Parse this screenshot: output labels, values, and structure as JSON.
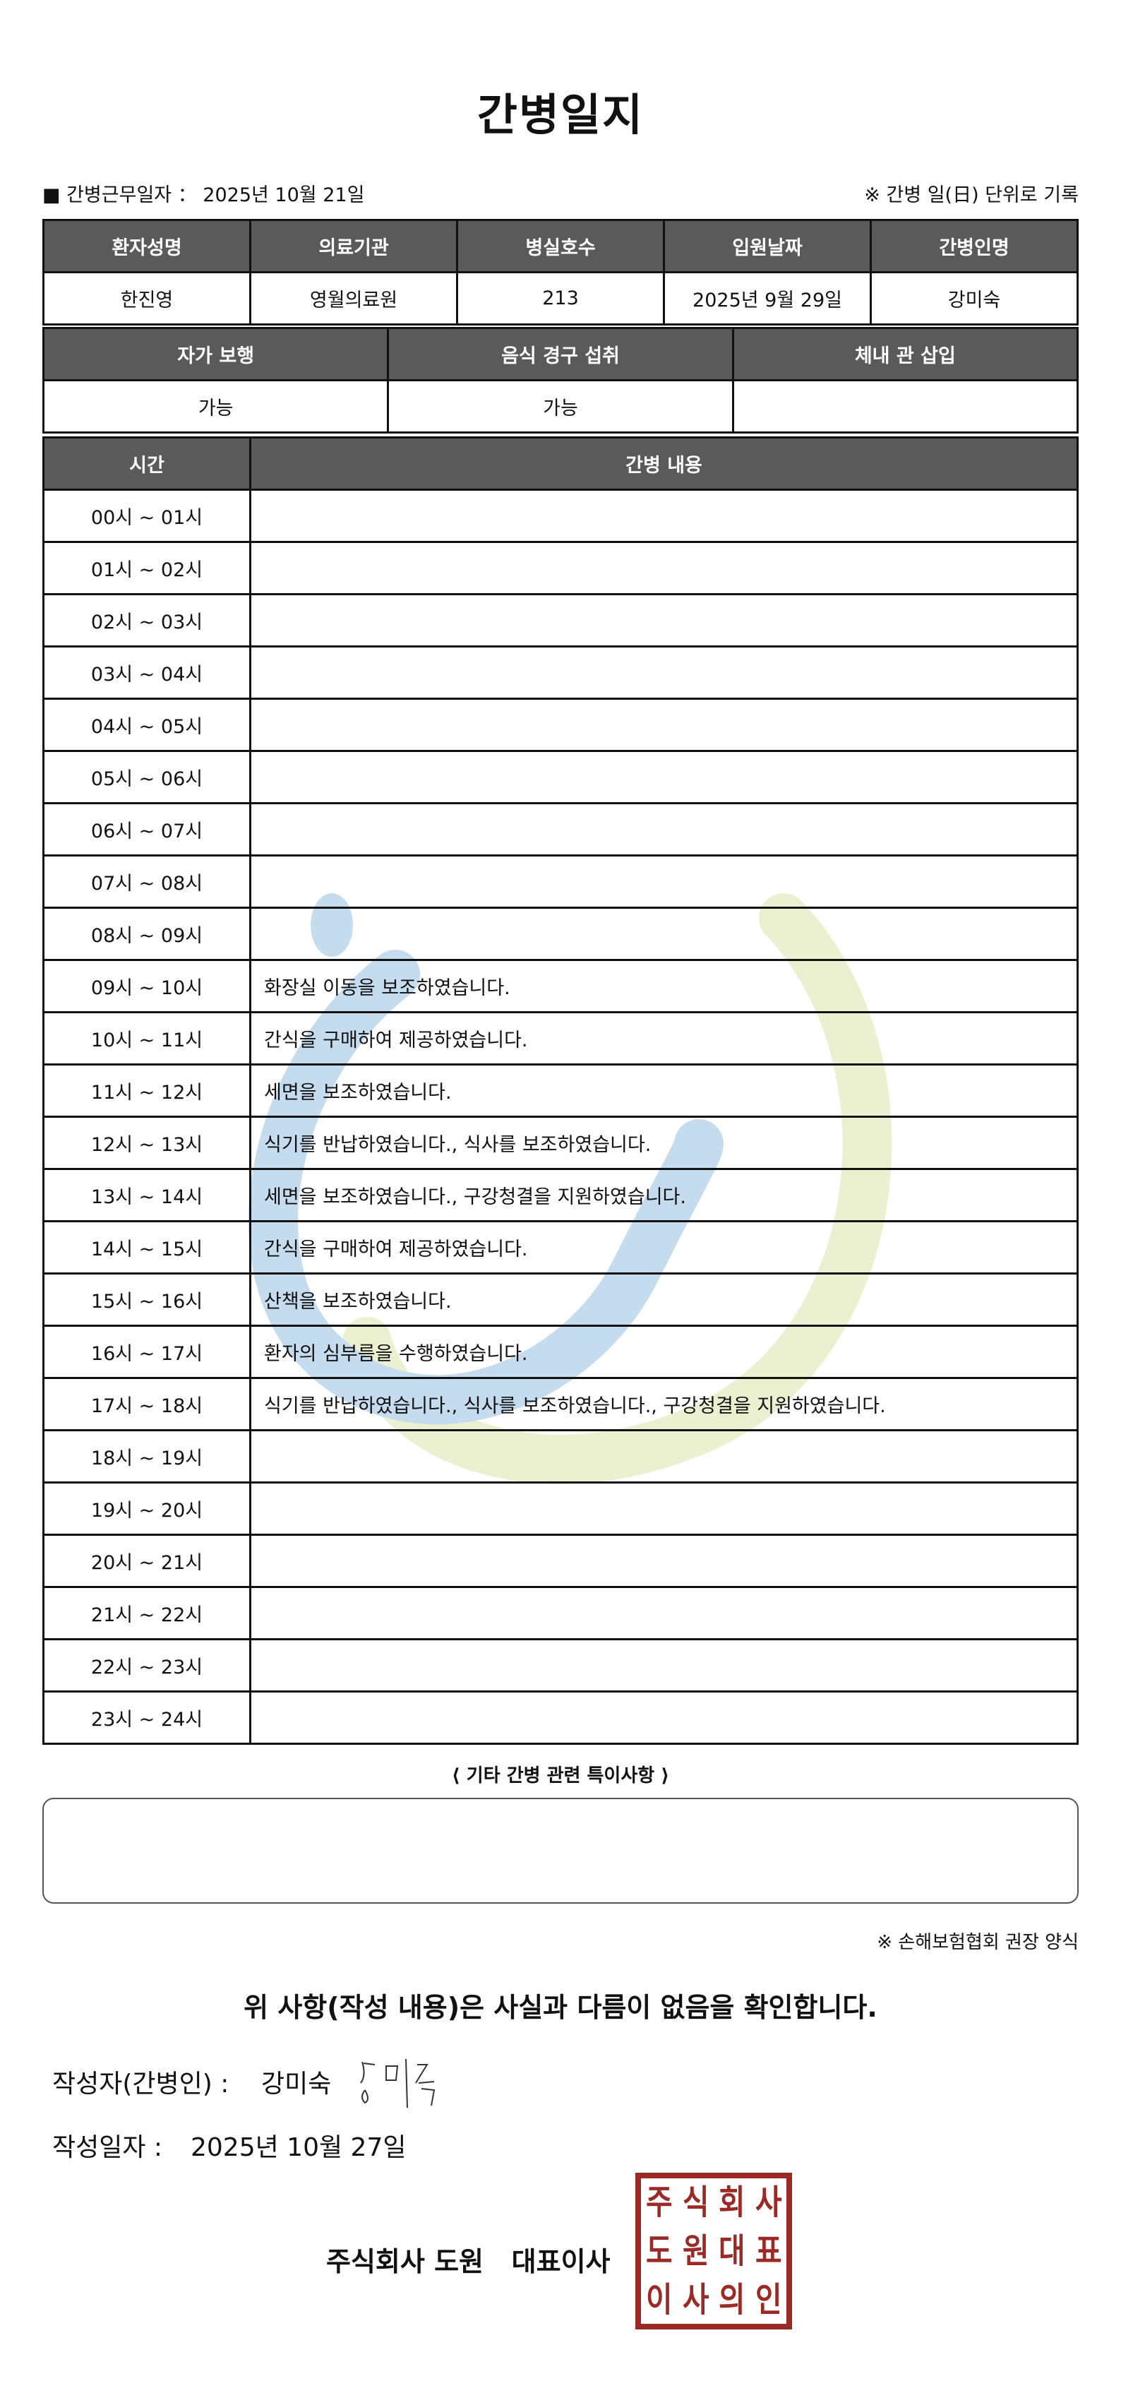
{
  "title": "간병일지",
  "work_date": "■ 간병근무일자 ：  2025년 10월 21일",
  "record_note": "※ 간병 일(日) 단위로 기록",
  "patient_table": {
    "headers": [
      "환자성명",
      "의료기관",
      "병실호수",
      "입원날짜",
      "간병인명"
    ],
    "values": [
      "한진영",
      "영월의료원",
      "213",
      "2025년 9월 29일",
      "강미숙"
    ]
  },
  "status_table": {
    "headers": [
      "자가 보행",
      "음식 경구 섭취",
      "체내 관 삽입"
    ],
    "values": [
      "가능",
      "가능",
      ""
    ]
  },
  "care_log": {
    "headers": [
      "시간",
      "간병 내용"
    ],
    "rows": [
      {
        "time": "00시 ~ 01시",
        "note": ""
      },
      {
        "time": "01시 ~ 02시",
        "note": ""
      },
      {
        "time": "02시 ~ 03시",
        "note": ""
      },
      {
        "time": "03시 ~ 04시",
        "note": ""
      },
      {
        "time": "04시 ~ 05시",
        "note": ""
      },
      {
        "time": "05시 ~ 06시",
        "note": ""
      },
      {
        "time": "06시 ~ 07시",
        "note": ""
      },
      {
        "time": "07시 ~ 08시",
        "note": ""
      },
      {
        "time": "08시 ~ 09시",
        "note": ""
      },
      {
        "time": "09시 ~ 10시",
        "note": "화장실 이동을 보조하였습니다."
      },
      {
        "time": "10시 ~ 11시",
        "note": "간식을 구매하여 제공하였습니다."
      },
      {
        "time": "11시 ~ 12시",
        "note": "세면을 보조하였습니다."
      },
      {
        "time": "12시 ~ 13시",
        "note": "식기를 반납하였습니다., 식사를 보조하였습니다."
      },
      {
        "time": "13시 ~ 14시",
        "note": "세면을 보조하였습니다., 구강청결을 지원하였습니다."
      },
      {
        "time": "14시 ~ 15시",
        "note": "간식을 구매하여 제공하였습니다."
      },
      {
        "time": "15시 ~ 16시",
        "note": "산책을 보조하였습니다."
      },
      {
        "time": "16시 ~ 17시",
        "note": "환자의 심부름을 수행하였습니다."
      },
      {
        "time": "17시 ~ 18시",
        "note": "식기를 반납하였습니다., 식사를 보조하였습니다., 구강청결을 지원하였습니다."
      },
      {
        "time": "18시 ~ 19시",
        "note": ""
      },
      {
        "time": "19시 ~ 20시",
        "note": ""
      },
      {
        "time": "20시 ~ 21시",
        "note": ""
      },
      {
        "time": "21시 ~ 22시",
        "note": ""
      },
      {
        "time": "22시 ~ 23시",
        "note": ""
      },
      {
        "time": "23시 ~ 24시",
        "note": ""
      }
    ]
  },
  "extra": {
    "label": "⟨ 기타 간병 관련 특이사항 ⟩",
    "content": ""
  },
  "form_note": "※ 손해보험협회 권장 양식",
  "confirm": "위 사항(작성 내용)은 사실과 다름이 없음을 확인합니다.",
  "writer_label": "작성자(간병인) :",
  "writer_name": "강미숙",
  "write_date_label": "작성일자 :",
  "write_date": "2025년 10월 27일",
  "company": "주식회사 도원   대표이사",
  "stamp_text": "주식회사도원대표이사의인",
  "colors": {
    "header_bg": "#5a5a5a",
    "stamp": "#9b2a26",
    "watermark_blue": "#5b9bd0",
    "watermark_green": "#c8da7a"
  }
}
